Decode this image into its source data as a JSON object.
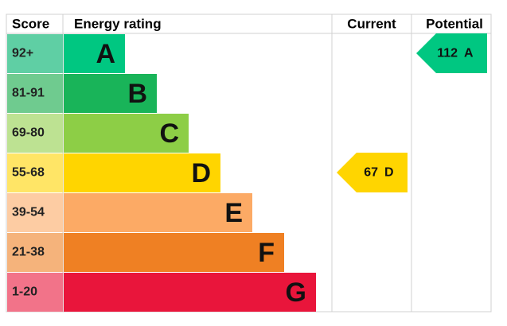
{
  "header": {
    "score": "Score",
    "energy_rating": "Energy rating",
    "current": "Current",
    "potential": "Potential"
  },
  "bands": [
    {
      "range": "92+",
      "rating": "A",
      "color": "#00c781",
      "tint": "#5fcfa4"
    },
    {
      "range": "81-91",
      "rating": "B",
      "color": "#19b459",
      "tint": "#6fcb8f"
    },
    {
      "range": "69-80",
      "rating": "C",
      "color": "#8dce46",
      "tint": "#bde292"
    },
    {
      "range": "55-68",
      "rating": "D",
      "color": "#ffd500",
      "tint": "#ffe566"
    },
    {
      "range": "39-54",
      "rating": "E",
      "color": "#fcaa65",
      "tint": "#fdcca3"
    },
    {
      "range": "21-38",
      "rating": "F",
      "color": "#ef8023",
      "tint": "#f5b37b"
    },
    {
      "range": "1-20",
      "rating": "G",
      "color": "#e9153b",
      "tint": "#f27389"
    }
  ],
  "current": {
    "value": 67,
    "rating": "D"
  },
  "potential": {
    "value": 112,
    "rating": "A"
  }
}
